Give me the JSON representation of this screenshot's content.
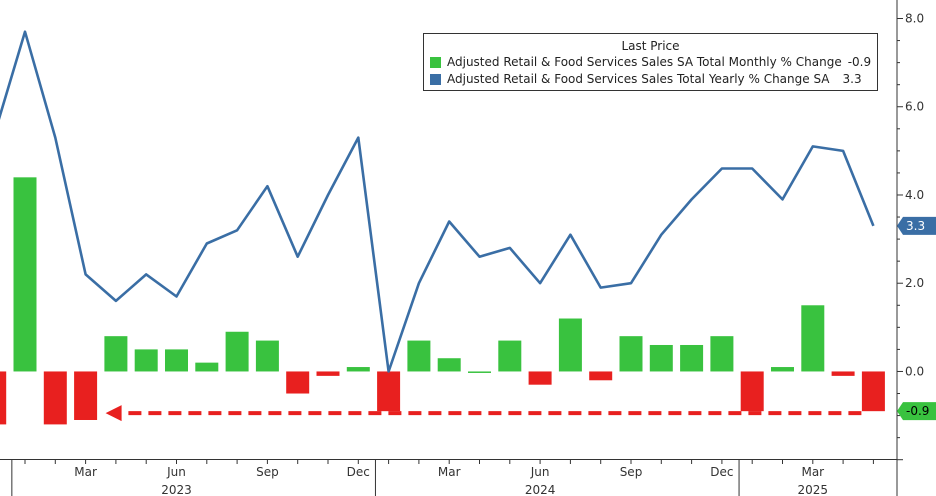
{
  "chart_data": {
    "type": "bar+line",
    "x": [
      "2022-12",
      "2023-01",
      "2023-02",
      "2023-03",
      "2023-04",
      "2023-05",
      "2023-06",
      "2023-07",
      "2023-08",
      "2023-09",
      "2023-10",
      "2023-11",
      "2023-12",
      "2024-01",
      "2024-02",
      "2024-03",
      "2024-04",
      "2024-05",
      "2024-06",
      "2024-07",
      "2024-08",
      "2024-09",
      "2024-10",
      "2024-11",
      "2024-12",
      "2025-01",
      "2025-02",
      "2025-03",
      "2025-04",
      "2025-05"
    ],
    "series": [
      {
        "name": "Adjusted Retail & Food Services Sales SA Total Monthly % Change",
        "kind": "bar",
        "last_price": "-0.9",
        "values": [
          -1.2,
          4.4,
          -1.2,
          -1.1,
          0.8,
          0.5,
          0.5,
          0.2,
          0.9,
          0.7,
          -0.5,
          -0.1,
          0.1,
          -0.9,
          0.7,
          0.3,
          0.0,
          0.7,
          -0.3,
          1.2,
          -0.2,
          0.8,
          0.6,
          0.6,
          0.8,
          -0.9,
          0.1,
          1.5,
          -0.1,
          -0.9
        ],
        "colors": {
          "positive": "#39c23f",
          "negative": "#e8201f"
        }
      },
      {
        "name": "Adjusted Retail & Food Services Sales Total Yearly % Change SA",
        "kind": "line",
        "last_price": "3.3",
        "values": [
          5.4,
          7.7,
          5.3,
          2.2,
          1.6,
          2.2,
          1.7,
          2.9,
          3.2,
          4.2,
          2.6,
          4.0,
          5.3,
          0.0,
          2.0,
          3.4,
          2.6,
          2.8,
          2.0,
          3.1,
          1.9,
          2.0,
          3.1,
          3.9,
          4.6,
          4.6,
          3.9,
          5.1,
          5.0,
          3.3
        ],
        "color": "#3a6ea5"
      }
    ],
    "y_axis": {
      "side": "right",
      "range": [
        -2.0,
        8.0
      ],
      "ticks": [
        "8.0",
        "6.0",
        "4.0",
        "2.0",
        "0.0"
      ]
    },
    "x_axis": {
      "month_labels": [
        {
          "label": "Mar",
          "x": "2023-03"
        },
        {
          "label": "Jun",
          "x": "2023-06"
        },
        {
          "label": "Sep",
          "x": "2023-09"
        },
        {
          "label": "Dec",
          "x": "2023-12"
        },
        {
          "label": "Mar",
          "x": "2024-03"
        },
        {
          "label": "Jun",
          "x": "2024-06"
        },
        {
          "label": "Sep",
          "x": "2024-09"
        },
        {
          "label": "Dec",
          "x": "2024-12"
        },
        {
          "label": "Mar",
          "x": "2025-03"
        }
      ],
      "year_labels": [
        {
          "label": "2023",
          "x": "2023-06"
        },
        {
          "label": "2024",
          "x": "2024-06"
        },
        {
          "label": "2025",
          "x": "2025-03"
        }
      ]
    },
    "annotation": {
      "type": "dashed-arrow",
      "color": "#e8201f",
      "from_x": "2025-05",
      "to_x": "2023-03",
      "value": -0.9
    },
    "legend": {
      "title": "Last Price",
      "position": "top-right"
    },
    "grid": false
  }
}
